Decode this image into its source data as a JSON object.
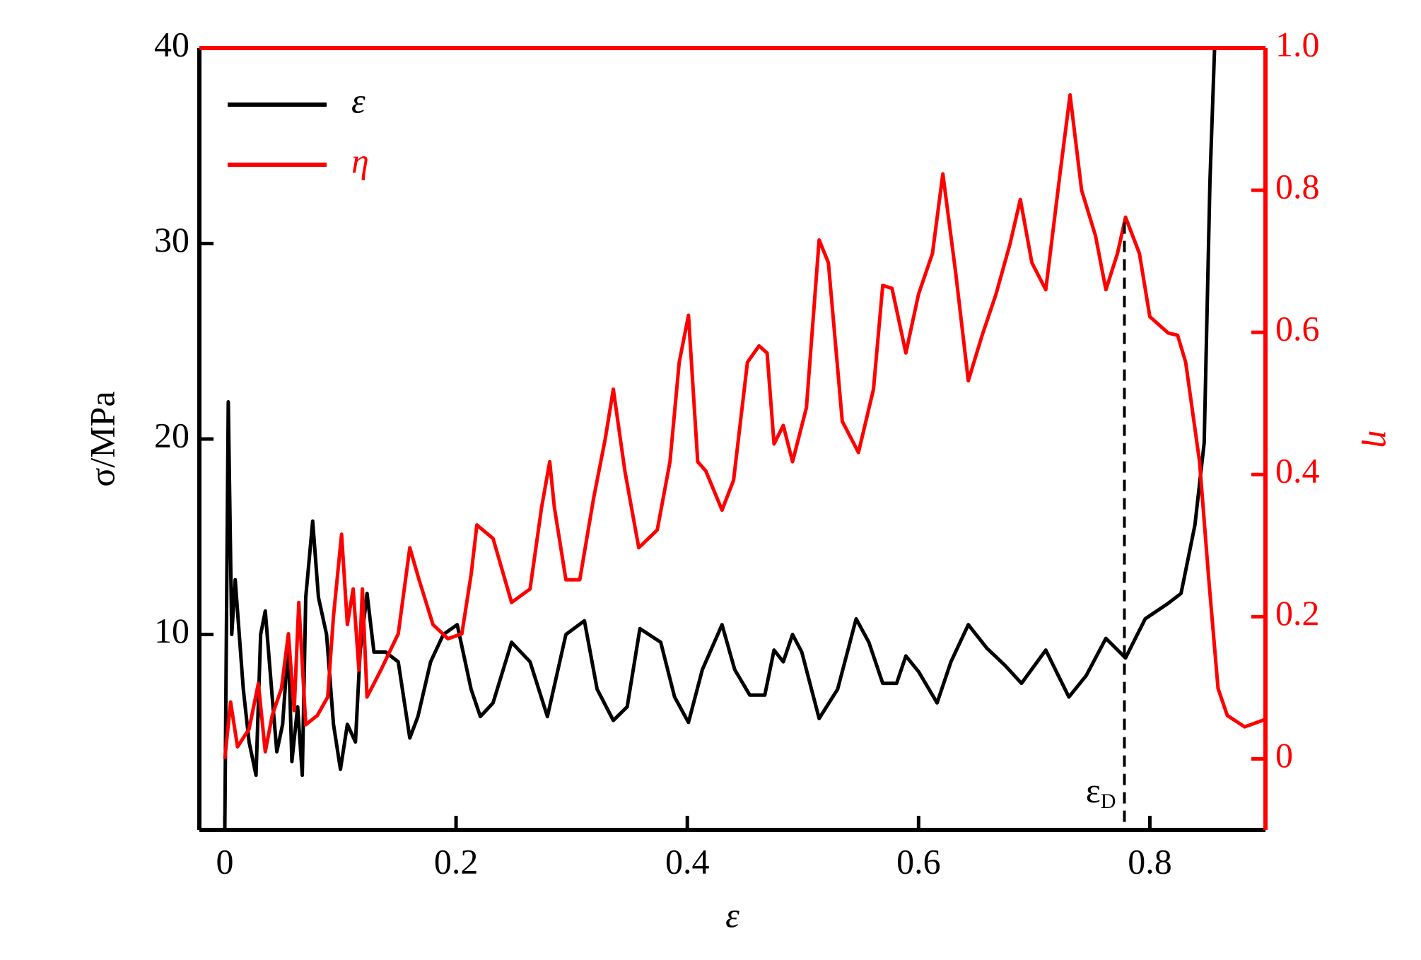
{
  "chart_data": {
    "type": "line",
    "xlabel": "ε",
    "ylabel": "σ/MPa",
    "y2label": "η",
    "xlim": [
      -0.022,
      0.9
    ],
    "ylim": [
      0,
      40
    ],
    "y2lim": [
      -0.1,
      1.0
    ],
    "xticks": [
      0,
      0.2,
      0.4,
      0.6,
      0.8
    ],
    "yticks": [
      10,
      20,
      30,
      40
    ],
    "y2ticks": [
      0,
      0.2,
      0.4,
      0.6,
      0.8,
      {
        "value": 1,
        "label": "1.0"
      }
    ],
    "legend": "upper left",
    "series": [
      {
        "name": "ε",
        "color": "#000000",
        "x": [
          0,
          0.003,
          0.006,
          0.009,
          0.0125,
          0.016,
          0.021,
          0.027,
          0.031,
          0.035,
          0.041,
          0.045,
          0.05,
          0.055,
          0.058,
          0.063,
          0.067,
          0.07,
          0.076,
          0.081,
          0.088,
          0.094,
          0.1,
          0.106,
          0.113,
          0.117,
          0.123,
          0.129,
          0.139,
          0.15,
          0.16,
          0.167,
          0.178,
          0.189,
          0.201,
          0.213,
          0.221,
          0.232,
          0.248,
          0.264,
          0.279,
          0.295,
          0.311,
          0.322,
          0.336,
          0.348,
          0.359,
          0.377,
          0.389,
          0.401,
          0.413,
          0.43,
          0.441,
          0.454,
          0.467,
          0.475,
          0.483,
          0.491,
          0.499,
          0.514,
          0.53,
          0.546,
          0.557,
          0.569,
          0.581,
          0.589,
          0.6,
          0.616,
          0.628,
          0.643,
          0.659,
          0.675,
          0.689,
          0.71,
          0.73,
          0.745,
          0.762,
          0.779,
          0.796,
          0.816,
          0.827,
          0.839,
          0.847,
          0.852,
          0.856
        ],
        "values": [
          0,
          21.9,
          10,
          12.8,
          10,
          7.2,
          4.5,
          2.8,
          10,
          11.2,
          6.8,
          4,
          5.4,
          9.6,
          3.5,
          6.3,
          2.8,
          11.9,
          15.8,
          11.9,
          10,
          5.4,
          3.1,
          5.4,
          4.5,
          9.1,
          12.1,
          9.1,
          9.1,
          8.6,
          4.7,
          5.8,
          8.6,
          10,
          10.5,
          7.2,
          5.8,
          6.5,
          9.6,
          8.6,
          5.8,
          10,
          10.7,
          7.2,
          5.6,
          6.3,
          10.3,
          9.6,
          6.8,
          5.5,
          8.2,
          10.5,
          8.2,
          6.9,
          6.9,
          9.2,
          8.6,
          10,
          9.1,
          5.7,
          7.2,
          10.8,
          9.6,
          7.5,
          7.5,
          8.9,
          8.1,
          6.5,
          8.6,
          10.5,
          9.3,
          8.4,
          7.5,
          9.2,
          6.8,
          7.9,
          9.8,
          8.8,
          10.8,
          11.6,
          12.1,
          15.6,
          19.8,
          33.2,
          40
        ]
      },
      {
        "name": "η",
        "color": "#ff0000",
        "axis": "y2",
        "x": [
          0,
          0.005,
          0.011,
          0.021,
          0.029,
          0.035,
          0.041,
          0.049,
          0.055,
          0.06,
          0.064,
          0.07,
          0.08,
          0.089,
          0.094,
          0.101,
          0.106,
          0.111,
          0.116,
          0.119,
          0.123,
          0.135,
          0.15,
          0.16,
          0.168,
          0.18,
          0.193,
          0.205,
          0.213,
          0.218,
          0.232,
          0.248,
          0.264,
          0.274,
          0.281,
          0.285,
          0.295,
          0.307,
          0.319,
          0.329,
          0.336,
          0.346,
          0.358,
          0.374,
          0.385,
          0.393,
          0.401,
          0.409,
          0.416,
          0.43,
          0.44,
          0.452,
          0.462,
          0.469,
          0.475,
          0.483,
          0.491,
          0.503,
          0.514,
          0.522,
          0.534,
          0.548,
          0.561,
          0.569,
          0.577,
          0.589,
          0.6,
          0.612,
          0.621,
          0.632,
          0.643,
          0.655,
          0.667,
          0.679,
          0.688,
          0.698,
          0.71,
          0.722,
          0.731,
          0.741,
          0.753,
          0.762,
          0.772,
          0.779,
          0.791,
          0.8,
          0.816,
          0.824,
          0.831,
          0.843,
          0.851,
          0.859,
          0.867,
          0.882,
          0.899
        ],
        "values": [
          0,
          0.08,
          0.017,
          0.042,
          0.106,
          0.01,
          0.061,
          0.099,
          0.176,
          0.068,
          0.22,
          0.048,
          0.061,
          0.087,
          0.201,
          0.316,
          0.189,
          0.239,
          0.125,
          0.239,
          0.087,
          0.125,
          0.176,
          0.297,
          0.252,
          0.189,
          0.169,
          0.176,
          0.259,
          0.329,
          0.31,
          0.22,
          0.239,
          0.354,
          0.418,
          0.354,
          0.252,
          0.252,
          0.367,
          0.45,
          0.52,
          0.405,
          0.297,
          0.322,
          0.418,
          0.558,
          0.624,
          0.418,
          0.405,
          0.35,
          0.392,
          0.558,
          0.581,
          0.571,
          0.443,
          0.469,
          0.418,
          0.494,
          0.73,
          0.698,
          0.475,
          0.431,
          0.52,
          0.666,
          0.662,
          0.571,
          0.654,
          0.711,
          0.823,
          0.685,
          0.532,
          0.596,
          0.654,
          0.724,
          0.787,
          0.698,
          0.66,
          0.819,
          0.934,
          0.8,
          0.736,
          0.66,
          0.711,
          0.762,
          0.711,
          0.622,
          0.599,
          0.596,
          0.558,
          0.418,
          0.252,
          0.099,
          0.061,
          0.045,
          0.055
        ]
      }
    ],
    "densification": {
      "x": 0.778,
      "label": "ε",
      "label_sub": "D"
    }
  }
}
